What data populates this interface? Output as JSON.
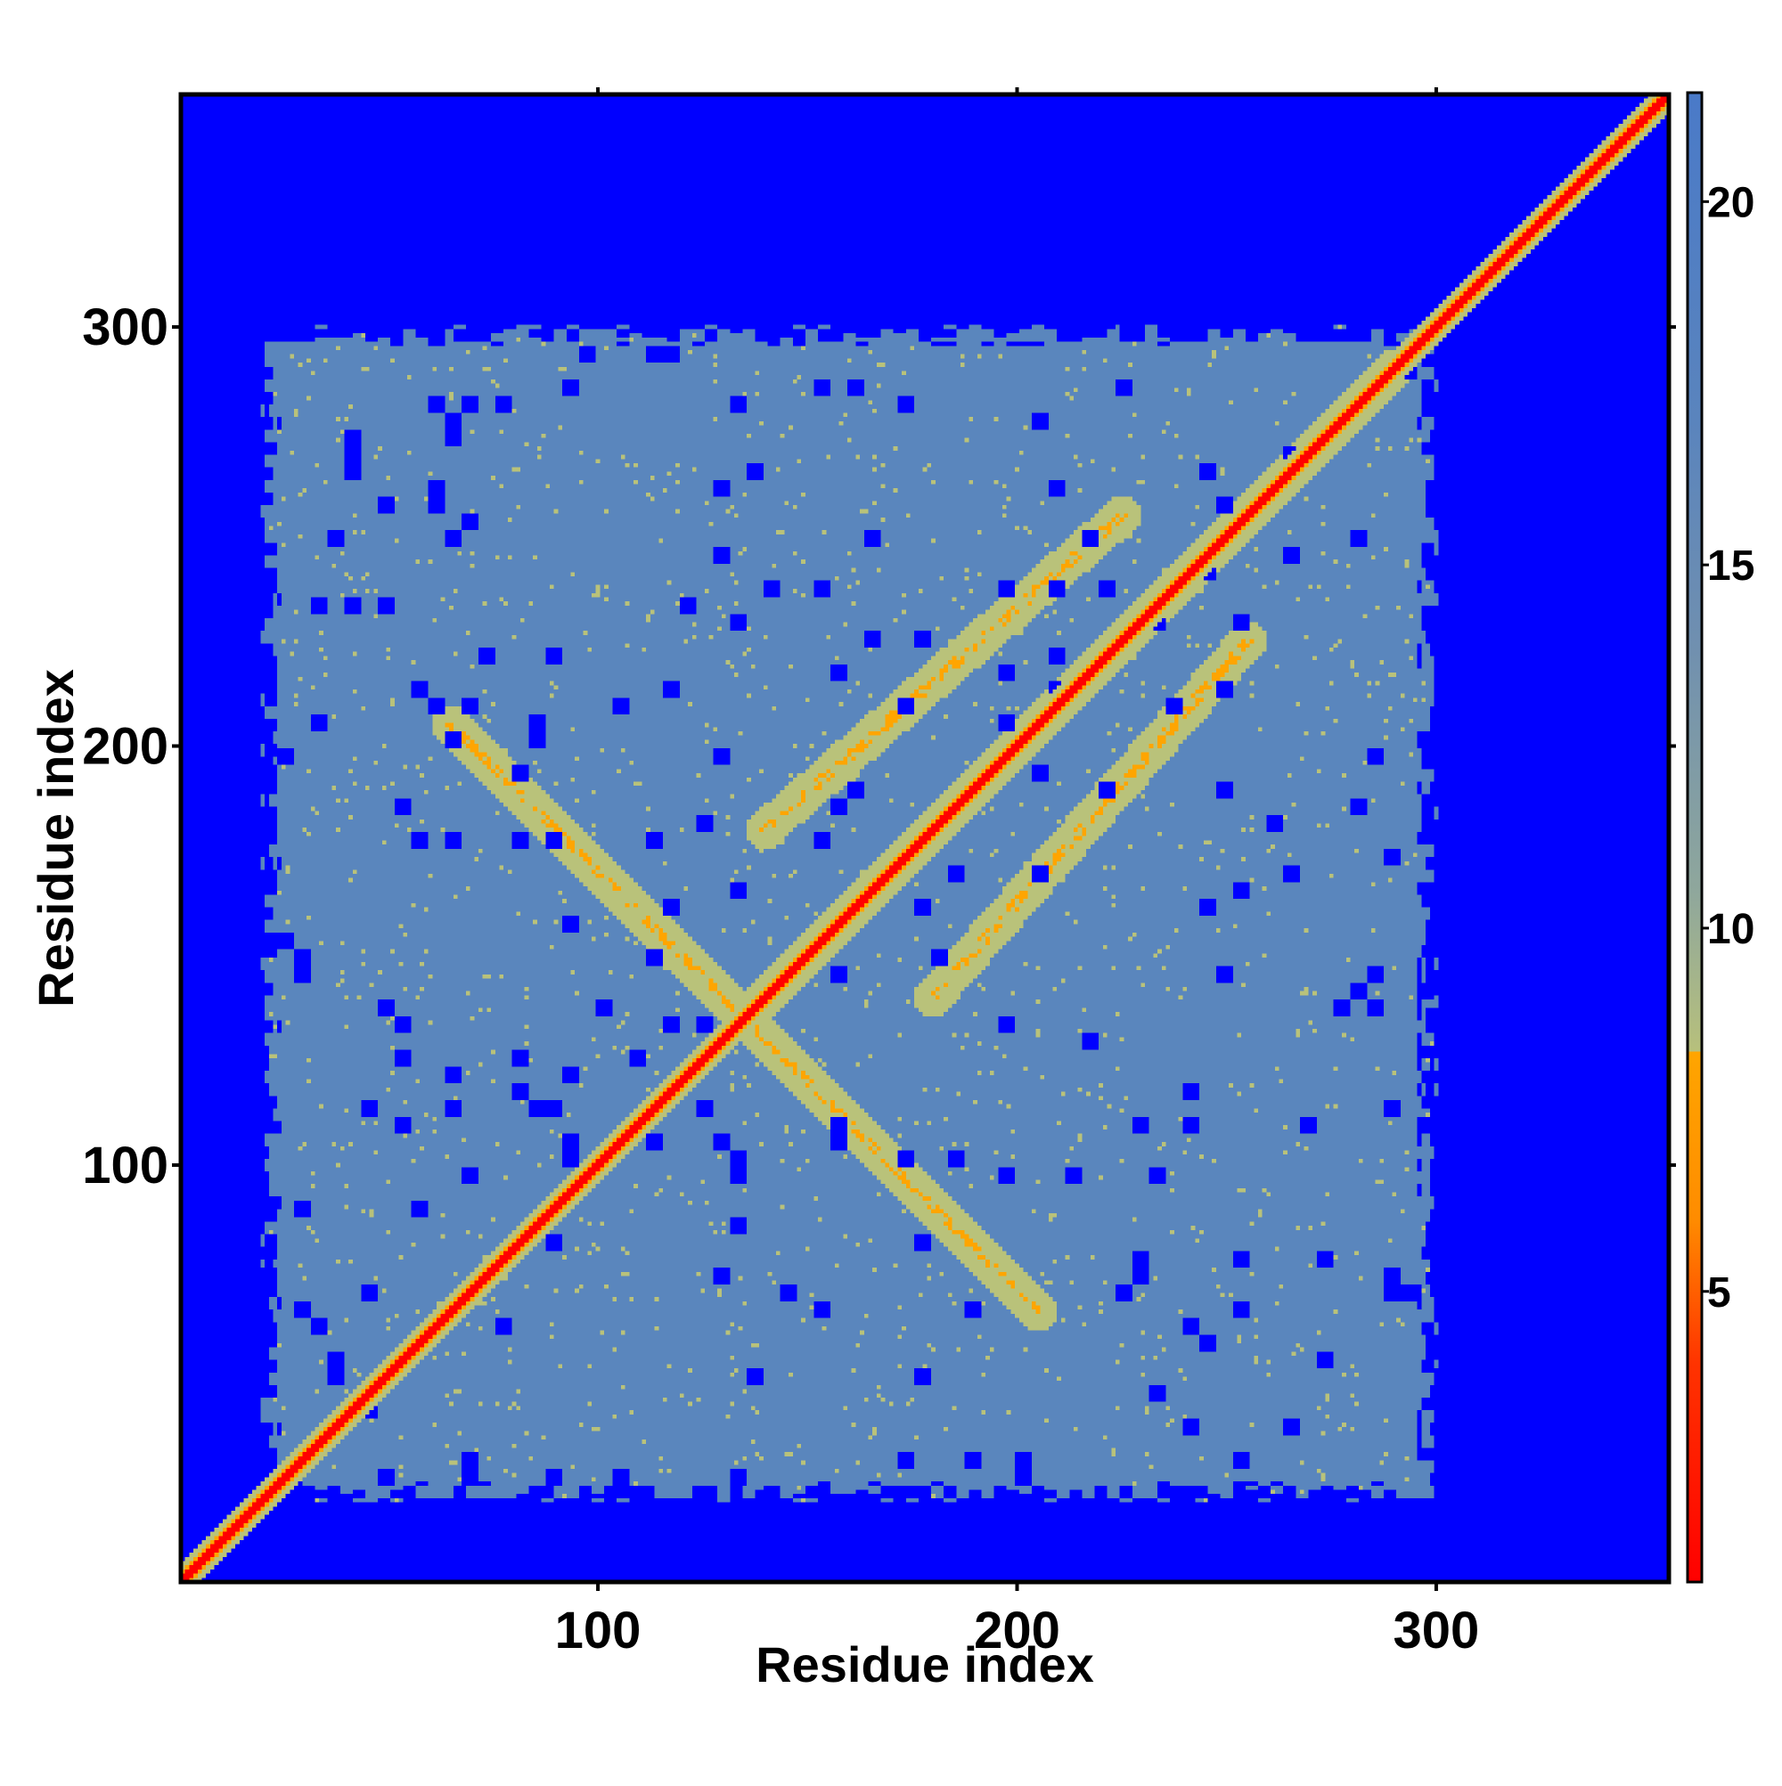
{
  "chart_data": {
    "type": "heatmap",
    "title": "",
    "xlabel": "Residue index",
    "ylabel": "Residue index",
    "xlim": [
      1,
      355
    ],
    "ylim": [
      1,
      355
    ],
    "x_ticks": [
      100,
      200,
      300
    ],
    "y_ticks": [
      100,
      200,
      300
    ],
    "x_tick_labels": [
      "100",
      "200",
      "300"
    ],
    "y_tick_labels": [
      "100",
      "200",
      "300"
    ],
    "grid": false,
    "legend": "none",
    "n_residues": 355,
    "colorbar": {
      "placement": "right",
      "range": [
        1,
        21.5
      ],
      "ticks": [
        5,
        10,
        15,
        20
      ],
      "tick_labels": [
        "5",
        "10",
        "15",
        "20"
      ],
      "stops": [
        {
          "value": 1,
          "color": "#ff0000"
        },
        {
          "value": 4,
          "color": "#ff3300"
        },
        {
          "value": 6,
          "color": "#ff8c00"
        },
        {
          "value": 8.3,
          "color": "#ffa500"
        },
        {
          "value": 8.3,
          "color": "#b7c07c"
        },
        {
          "value": 10.5,
          "color": "#8fa79c"
        },
        {
          "value": 14,
          "color": "#6f8fb0"
        },
        {
          "value": 17,
          "color": "#5a84bd"
        },
        {
          "value": 21.5,
          "color": "#4a7ac8"
        }
      ]
    },
    "colors": {
      "background_far": "#0000ff",
      "mid_region": "#5a86bd",
      "yellow_contact": "#b9c27a",
      "orange_contact": "#ffa500",
      "diagonal": "#ff0000"
    },
    "structured_core_range": [
      25,
      295
    ],
    "secondary_contact_bands": [
      {
        "from": [
          135,
          135
        ],
        "to": [
          290,
          290
        ],
        "kind": "diagonal"
      },
      {
        "from": [
          135,
          135
        ],
        "to": [
          205,
          65
        ],
        "kind": "antidiagonal"
      },
      {
        "from": [
          135,
          135
        ],
        "to": [
          65,
          205
        ],
        "kind": "antidiagonal"
      },
      {
        "from": [
          140,
          180
        ],
        "to": [
          225,
          255
        ],
        "kind": "parallel"
      },
      {
        "from": [
          180,
          140
        ],
        "to": [
          255,
          225
        ],
        "kind": "parallel"
      }
    ]
  }
}
